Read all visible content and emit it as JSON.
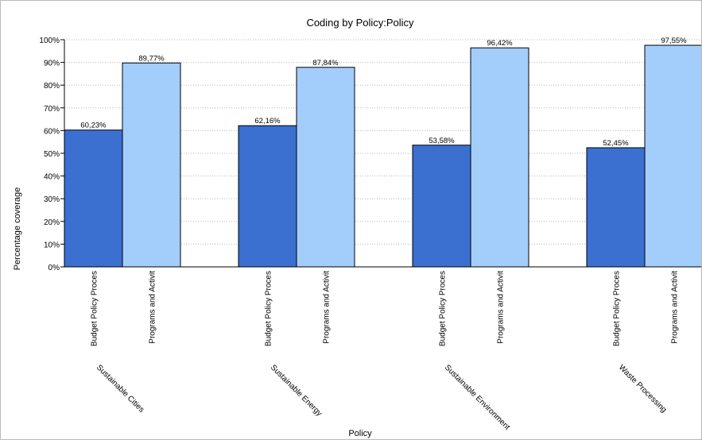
{
  "chart_data": {
    "type": "bar",
    "title": "Coding by Policy:Policy",
    "xlabel": "Policy",
    "ylabel": "Percentage coverage",
    "ylim": [
      0,
      100
    ],
    "yticks": [
      "0%",
      "10%",
      "20%",
      "30%",
      "40%",
      "50%",
      "60%",
      "70%",
      "80%",
      "90%",
      "100%"
    ],
    "grid": true,
    "categories": [
      "Sustainable Cities",
      "Sustainable Energy",
      "Sustainable Environment",
      "Waste Processing"
    ],
    "series": [
      {
        "name": "Budget Policy Proces",
        "color": "#3b6fd0",
        "values": [
          60.23,
          62.16,
          53.58,
          52.45
        ],
        "labels": [
          "60,23%",
          "62,16%",
          "53,58%",
          "52,45%"
        ]
      },
      {
        "name": "Programs and Activit",
        "color": "#a3cdfb",
        "values": [
          89.77,
          87.84,
          96.42,
          97.55
        ],
        "labels": [
          "89,77%",
          "87,84%",
          "96,42%",
          "97,55%"
        ]
      }
    ]
  }
}
